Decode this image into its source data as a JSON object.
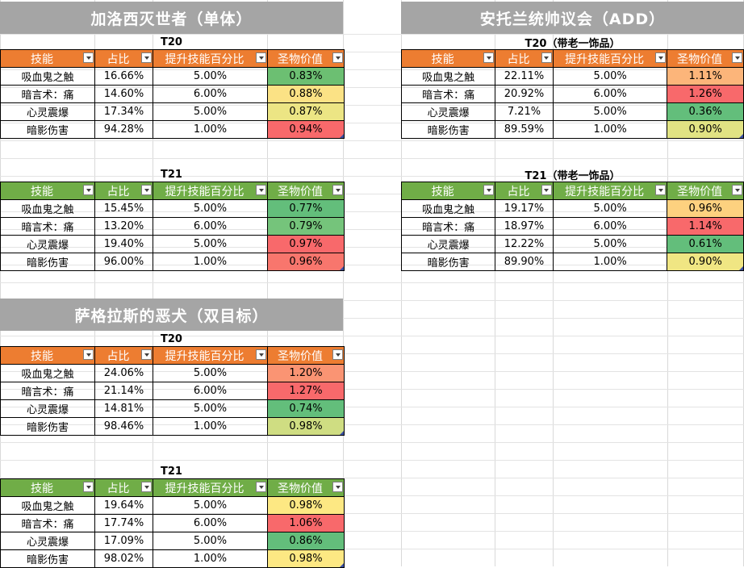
{
  "colors": {
    "banner_bg": "#a5a5a5",
    "header_orange": "#ed7d31",
    "header_green": "#70ad47"
  },
  "headers": [
    "技能",
    "占比",
    "提升技能百分比",
    "圣物价值"
  ],
  "sections": [
    {
      "title": "加洛西灭世者（单体）",
      "tables": [
        {
          "subtitle": "T20",
          "header_color": "orange",
          "rows": [
            {
              "skill": "吸血鬼之触",
              "share": "16.66%",
              "boost": "5.00%",
              "value": "0.83%",
              "color": "#6cbf72"
            },
            {
              "skill": "暗言术：痛",
              "share": "14.60%",
              "boost": "6.00%",
              "value": "0.88%",
              "color": "#fbe285"
            },
            {
              "skill": "心灵震爆",
              "share": "17.34%",
              "boost": "5.00%",
              "value": "0.87%",
              "color": "#ece584"
            },
            {
              "skill": "暗影伤害",
              "share": "94.28%",
              "boost": "1.00%",
              "value": "0.94%",
              "color": "#f8696b"
            }
          ]
        },
        {
          "subtitle": "T21",
          "header_color": "green",
          "rows": [
            {
              "skill": "吸血鬼之触",
              "share": "15.45%",
              "boost": "5.00%",
              "value": "0.77%",
              "color": "#63be7b"
            },
            {
              "skill": "暗言术：痛",
              "share": "13.20%",
              "boost": "6.00%",
              "value": "0.79%",
              "color": "#75c47b"
            },
            {
              "skill": "心灵震爆",
              "share": "19.40%",
              "boost": "5.00%",
              "value": "0.97%",
              "color": "#f8696b"
            },
            {
              "skill": "暗影伤害",
              "share": "96.00%",
              "boost": "1.00%",
              "value": "0.96%",
              "color": "#f8766d"
            }
          ]
        }
      ]
    },
    {
      "title": "安托兰统帅议会（ADD）",
      "tables": [
        {
          "subtitle": "T20（带老一饰品）",
          "header_color": "orange",
          "rows": [
            {
              "skill": "吸血鬼之触",
              "share": "22.11%",
              "boost": "5.00%",
              "value": "1.11%",
              "color": "#fcb57a"
            },
            {
              "skill": "暗言术：痛",
              "share": "20.92%",
              "boost": "6.00%",
              "value": "1.26%",
              "color": "#f8696b"
            },
            {
              "skill": "心灵震爆",
              "share": "7.21%",
              "boost": "5.00%",
              "value": "0.36%",
              "color": "#63be7b"
            },
            {
              "skill": "暗影伤害",
              "share": "89.59%",
              "boost": "1.00%",
              "value": "0.90%",
              "color": "#e1e383"
            }
          ]
        },
        {
          "subtitle": "T21（带老一饰品）",
          "header_color": "green",
          "rows": [
            {
              "skill": "吸血鬼之触",
              "share": "19.17%",
              "boost": "5.00%",
              "value": "0.96%",
              "color": "#fdd17f"
            },
            {
              "skill": "暗言术：痛",
              "share": "18.97%",
              "boost": "6.00%",
              "value": "1.14%",
              "color": "#f8696b"
            },
            {
              "skill": "心灵震爆",
              "share": "12.22%",
              "boost": "5.00%",
              "value": "0.61%",
              "color": "#63be7b"
            },
            {
              "skill": "暗影伤害",
              "share": "89.90%",
              "boost": "1.00%",
              "value": "0.90%",
              "color": "#f0e683"
            }
          ]
        }
      ]
    },
    {
      "title": "萨格拉斯的恶犬（双目标）",
      "tables": [
        {
          "subtitle": "T20",
          "header_color": "orange",
          "rows": [
            {
              "skill": "吸血鬼之触",
              "share": "24.06%",
              "boost": "5.00%",
              "value": "1.20%",
              "color": "#fa9473"
            },
            {
              "skill": "暗言术：痛",
              "share": "21.14%",
              "boost": "6.00%",
              "value": "1.27%",
              "color": "#f8696b"
            },
            {
              "skill": "心灵震爆",
              "share": "14.81%",
              "boost": "5.00%",
              "value": "0.74%",
              "color": "#63be7b"
            },
            {
              "skill": "暗影伤害",
              "share": "98.46%",
              "boost": "1.00%",
              "value": "0.98%",
              "color": "#cfdd82"
            }
          ]
        },
        {
          "subtitle": "T21",
          "header_color": "green",
          "rows": [
            {
              "skill": "吸血鬼之触",
              "share": "19.64%",
              "boost": "5.00%",
              "value": "0.98%",
              "color": "#fde883"
            },
            {
              "skill": "暗言术：痛",
              "share": "17.74%",
              "boost": "6.00%",
              "value": "1.06%",
              "color": "#f8696b"
            },
            {
              "skill": "心灵震爆",
              "share": "17.09%",
              "boost": "5.00%",
              "value": "0.86%",
              "color": "#63be7b"
            },
            {
              "skill": "暗影伤害",
              "share": "98.02%",
              "boost": "1.00%",
              "value": "0.98%",
              "color": "#fde883"
            }
          ]
        }
      ]
    }
  ]
}
